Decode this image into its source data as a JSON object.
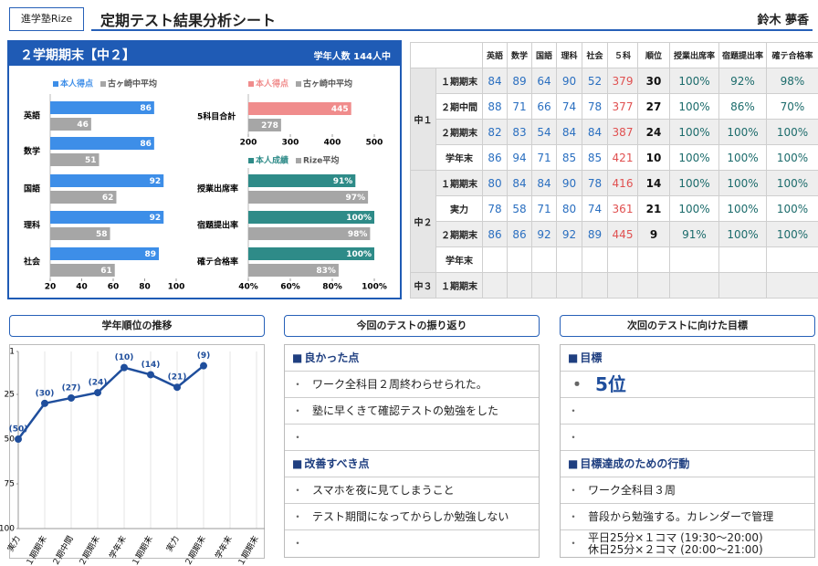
{
  "header": {
    "school": "進学塾Rize",
    "title": "定期テスト結果分析シート",
    "name": "鈴木 夢香"
  },
  "summary": {
    "term": "２学期期末【中２】",
    "students": "学年人数 144人中"
  },
  "subject_chart": {
    "type": "bar",
    "categories": [
      "英語",
      "数学",
      "国語",
      "理科",
      "社会"
    ],
    "series": [
      {
        "name": "本人得点",
        "color": "#3d8ee8",
        "values": [
          86,
          86,
          92,
          92,
          89
        ]
      },
      {
        "name": "古ヶ崎中平均",
        "color": "#a6a6a6",
        "values": [
          46,
          51,
          62,
          58,
          61
        ]
      }
    ],
    "xlim": [
      20,
      100
    ],
    "xticks": [
      20,
      40,
      60,
      80,
      100
    ]
  },
  "total_chart": {
    "type": "bar",
    "categories": [
      "5科目合計"
    ],
    "series": [
      {
        "name": "本人得点",
        "color": "#f08c8c",
        "values": [
          445
        ]
      },
      {
        "name": "古ヶ崎中平均",
        "color": "#a6a6a6",
        "values": [
          278
        ]
      }
    ],
    "xlim": [
      200,
      500
    ],
    "xticks": [
      200,
      300,
      400,
      500
    ]
  },
  "rate_chart": {
    "type": "bar",
    "categories": [
      "授業出席率",
      "宿題提出率",
      "確テ合格率"
    ],
    "series": [
      {
        "name": "本人成績",
        "color": "#2e8b88",
        "values": [
          91,
          100,
          100
        ],
        "value_labels": [
          "91%",
          "100%",
          "100%"
        ]
      },
      {
        "name": "Rize平均",
        "color": "#a6a6a6",
        "values": [
          97,
          98,
          83
        ],
        "value_labels": [
          "97%",
          "98%",
          "83%"
        ]
      }
    ],
    "xlim": [
      40,
      100
    ],
    "xticks": [
      {
        "value": 40,
        "label": "40%"
      },
      {
        "value": 60,
        "label": "60%"
      },
      {
        "value": 80,
        "label": "80%"
      },
      {
        "value": 100,
        "label": "100%"
      }
    ]
  },
  "table": {
    "columns": [
      "英語",
      "数学",
      "国語",
      "理科",
      "社会",
      "５科",
      "順位",
      "授業出席率",
      "宿題提出率",
      "確テ合格率"
    ],
    "groups": [
      {
        "grade": "中１",
        "rows": [
          {
            "term": "１期期末",
            "cells": [
              "84",
              "89",
              "64",
              "90",
              "52",
              "379",
              "30",
              "100%",
              "92%",
              "98%"
            ]
          },
          {
            "term": "２期中間",
            "cells": [
              "88",
              "71",
              "66",
              "74",
              "78",
              "377",
              "27",
              "100%",
              "86%",
              "70%"
            ]
          },
          {
            "term": "２期期末",
            "cells": [
              "82",
              "83",
              "54",
              "84",
              "84",
              "387",
              "24",
              "100%",
              "100%",
              "100%"
            ]
          },
          {
            "term": "学年末",
            "cells": [
              "86",
              "94",
              "71",
              "85",
              "85",
              "421",
              "10",
              "100%",
              "100%",
              "100%"
            ]
          }
        ]
      },
      {
        "grade": "中２",
        "rows": [
          {
            "term": "１期期末",
            "cells": [
              "80",
              "84",
              "84",
              "90",
              "78",
              "416",
              "14",
              "100%",
              "100%",
              "100%"
            ]
          },
          {
            "term": "実力",
            "cells": [
              "78",
              "58",
              "71",
              "80",
              "74",
              "361",
              "21",
              "100%",
              "100%",
              "100%"
            ]
          },
          {
            "term": "２期期末",
            "cells": [
              "86",
              "86",
              "92",
              "92",
              "89",
              "445",
              "9",
              "91%",
              "100%",
              "100%"
            ]
          },
          {
            "term": "学年末",
            "cells": []
          }
        ]
      },
      {
        "grade": "中３",
        "rows": [
          {
            "term": "１期期末",
            "cells": []
          }
        ]
      }
    ]
  },
  "rank_chart": {
    "type": "line",
    "title": "学年順位の推移",
    "categories": [
      "実力",
      "１期期末",
      "２期中間",
      "２期期末",
      "学年末",
      "１期期末",
      "実力",
      "２期期末",
      "学年末",
      "１期期末"
    ],
    "values": [
      50,
      30,
      27,
      24,
      10,
      14,
      21,
      9,
      null,
      null
    ],
    "value_labels": [
      "(50)",
      "(30)",
      "(27)",
      "(24)",
      "(10)",
      "(14)",
      "(21)",
      "(9)",
      null,
      null
    ],
    "color": "#1f4e9c",
    "ylim": [
      1,
      100
    ],
    "inverted": true,
    "yticks": [
      1,
      25,
      50,
      75,
      100
    ]
  },
  "review": {
    "title": "今回のテストの振り返り",
    "sections": [
      {
        "heading": "良かった点",
        "items": [
          "ワーク全科目２周終わらせられた。",
          "塾に早くきて確認テストの勉強をした"
        ]
      },
      {
        "heading": "改善すべき点",
        "items": [
          "スマホを夜に見てしまうこと",
          "テスト期間になってからしか勉強しない"
        ]
      }
    ]
  },
  "goals": {
    "title": "次回のテストに向けた目標",
    "sections": [
      {
        "heading": "目標",
        "items": [
          "5位"
        ]
      },
      {
        "heading": "目標達成のための行動",
        "items": [
          "ワーク全科目３周",
          "普段から勉強する。カレンダーで管理",
          "平日25分×１コマ (19:30〜20:00)\n休日25分×２コマ (20:00〜21:00)"
        ]
      }
    ]
  }
}
